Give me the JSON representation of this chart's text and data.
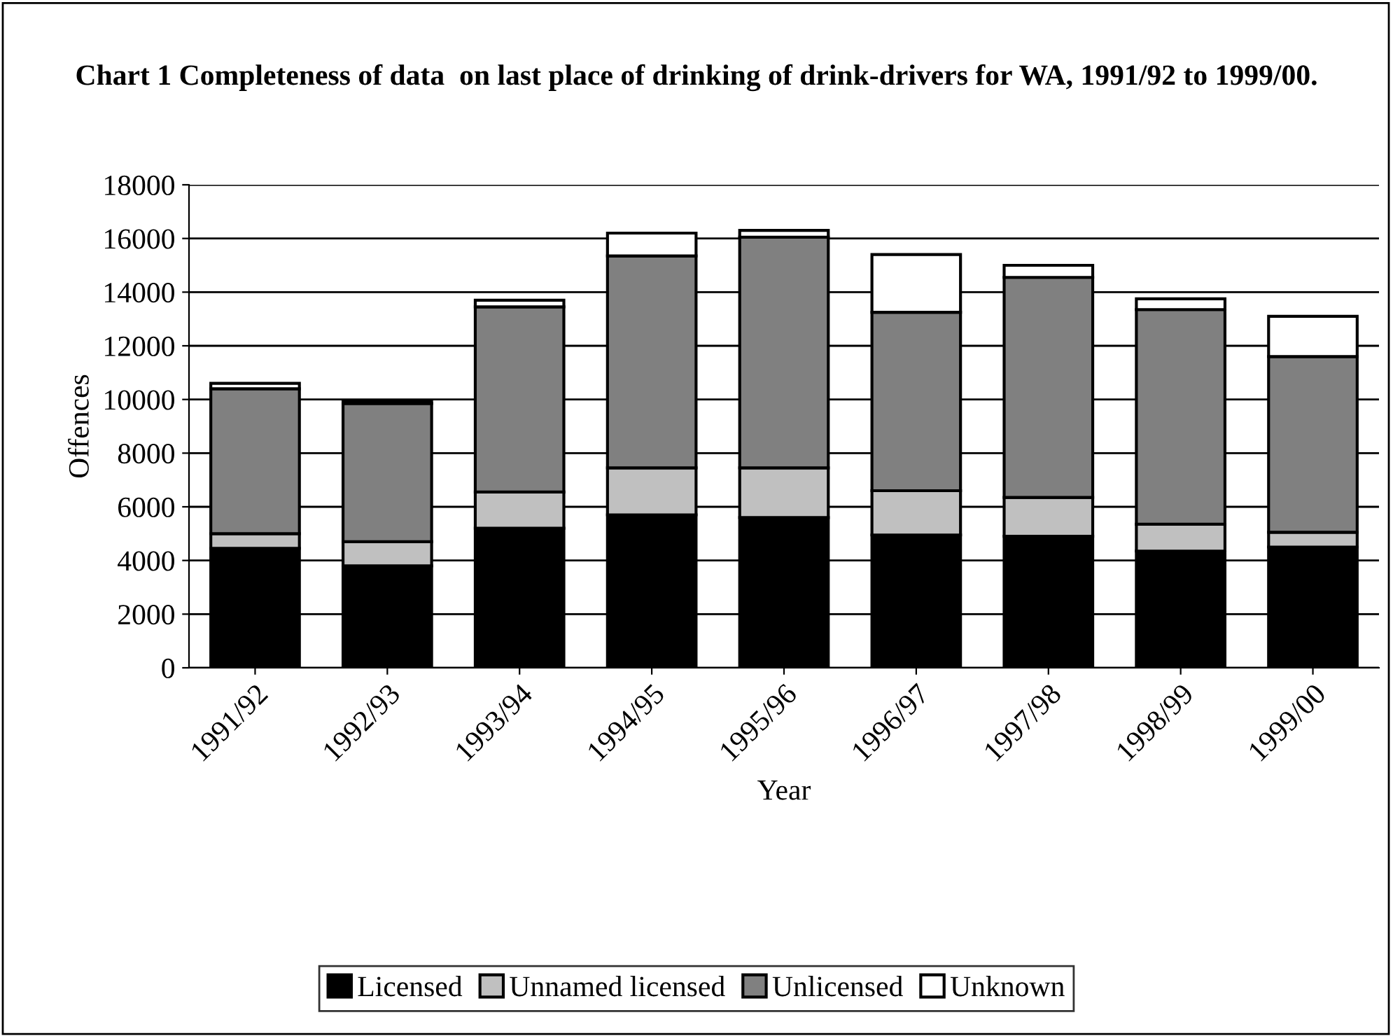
{
  "chart_data": {
    "type": "bar",
    "title": "Chart 1 Completeness of data  on last place of drinking of drink-drivers for WA, 1991/92 to 1999/00.",
    "xlabel": "Year",
    "ylabel": "Offences",
    "categories": [
      "1991/92",
      "1992/93",
      "1993/94",
      "1994/95",
      "1995/96",
      "1996/97",
      "1997/98",
      "1998/99",
      "1999/00"
    ],
    "stacked": true,
    "series": [
      {
        "name": "Licensed",
        "color": "#000000",
        "values": [
          4450,
          3800,
          5200,
          5700,
          5600,
          4950,
          4900,
          4350,
          4500
        ]
      },
      {
        "name": "Unnamed licensed",
        "color": "#c0c0c0",
        "values": [
          550,
          900,
          1350,
          1750,
          1850,
          1650,
          1450,
          1000,
          550
        ]
      },
      {
        "name": "Unlicensed",
        "color": "#808080",
        "values": [
          5400,
          5150,
          6900,
          7900,
          8600,
          6650,
          8200,
          8000,
          6550
        ]
      },
      {
        "name": "Unknown",
        "color": "#ffffff",
        "values": [
          200,
          100,
          250,
          850,
          250,
          2150,
          450,
          400,
          1500
        ]
      }
    ],
    "ylim": [
      0,
      18000
    ],
    "yticks": [
      0,
      2000,
      4000,
      6000,
      8000,
      10000,
      12000,
      14000,
      16000,
      18000
    ],
    "grid": "y",
    "legend": "bottom"
  }
}
